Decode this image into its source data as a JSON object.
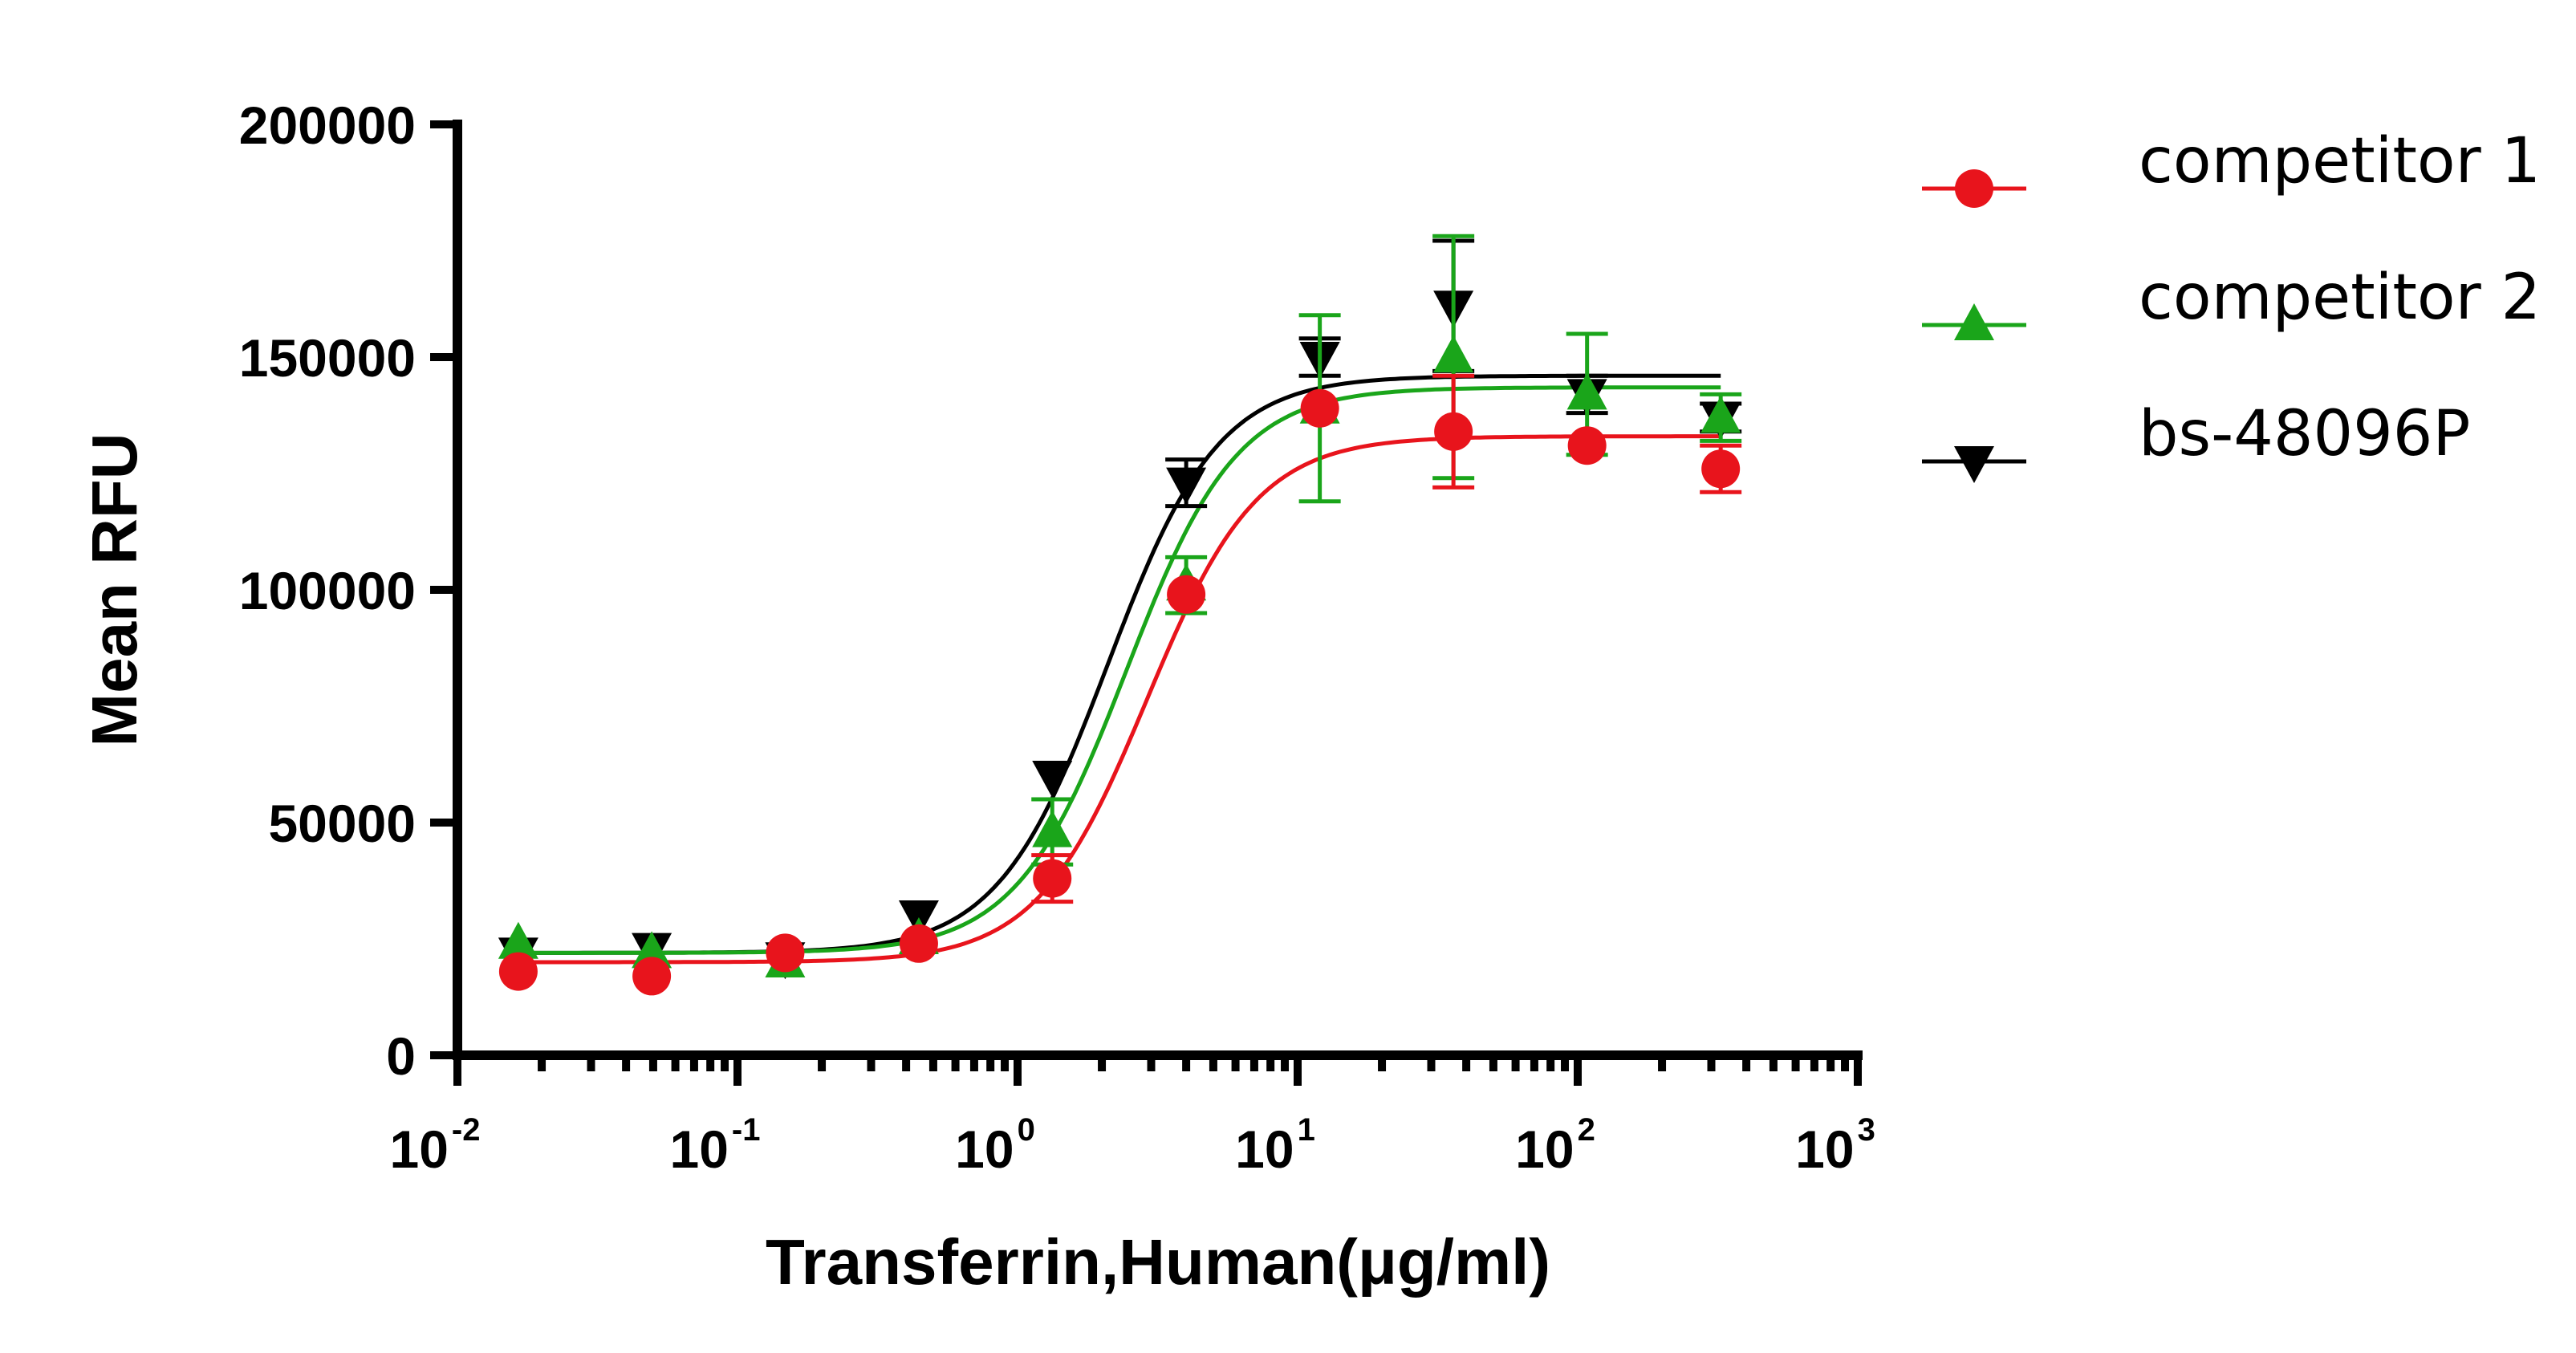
{
  "chart_data": {
    "type": "scatter",
    "xlabel": "Transferrin,Human(μg/ml)",
    "ylabel": "Mean RFU",
    "xscale": "log",
    "xlim": [
      0.01,
      1000
    ],
    "ylim": [
      0,
      200000
    ],
    "x_ticks": [
      {
        "base": "10",
        "exp": "-2",
        "value": 0.01
      },
      {
        "base": "10",
        "exp": "-1",
        "value": 0.1
      },
      {
        "base": "10",
        "exp": "0",
        "value": 1
      },
      {
        "base": "10",
        "exp": "1",
        "value": 10
      },
      {
        "base": "10",
        "exp": "2",
        "value": 100
      },
      {
        "base": "10",
        "exp": "3",
        "value": 1000
      }
    ],
    "y_ticks": [
      {
        "label": "0",
        "value": 0
      },
      {
        "label": "50000",
        "value": 50000
      },
      {
        "label": "100000",
        "value": 100000
      },
      {
        "label": "150000",
        "value": 150000
      },
      {
        "label": "200000",
        "value": 200000
      }
    ],
    "legend_position": "top-right",
    "grid": false,
    "x": [
      0.0165,
      0.0494,
      0.148,
      0.444,
      1.33,
      4.0,
      12.0,
      36.0,
      108.0,
      324.0
    ],
    "series": [
      {
        "name": "competitor 1",
        "color": "#e8141c",
        "marker": "circle",
        "y": [
          18000,
          17000,
          22000,
          24000,
          38000,
          99000,
          139000,
          134000,
          131000,
          126000
        ],
        "err": [
          0,
          0,
          0,
          0,
          5000,
          0,
          0,
          12000,
          0,
          5000
        ],
        "fit": {
          "bottom": 20000,
          "top": 133000,
          "ec50": 2.9,
          "hill": 2.2
        }
      },
      {
        "name": "competitor 2",
        "color": "#1aa51a",
        "marker": "triangle-up",
        "y": [
          24000,
          22000,
          20000,
          25000,
          48000,
          101000,
          139000,
          150000,
          142000,
          137000
        ],
        "err": [
          0,
          0,
          0,
          0,
          7000,
          6000,
          20000,
          26000,
          13000,
          5000
        ],
        "fit": {
          "bottom": 22000,
          "top": 143500,
          "ec50": 2.45,
          "hill": 2.2
        }
      },
      {
        "name": "bs-48096P",
        "color": "#000000",
        "marker": "triangle-down",
        "y": [
          22000,
          23000,
          21000,
          30000,
          60000,
          123000,
          150000,
          161000,
          142000,
          137000
        ],
        "err": [
          0,
          0,
          0,
          0,
          0,
          5000,
          4000,
          14000,
          4000,
          3000
        ],
        "fit": {
          "bottom": 22000,
          "top": 146000,
          "ec50": 2.1,
          "hill": 2.2
        }
      }
    ]
  }
}
